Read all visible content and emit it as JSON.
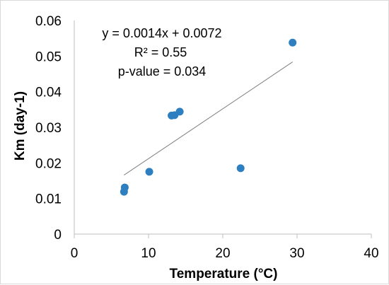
{
  "chart_data": {
    "type": "scatter",
    "title": "",
    "xlabel": "Temperature (°C)",
    "ylabel": "Km (day-1)",
    "xlim": [
      0,
      40
    ],
    "ylim": [
      0,
      0.06
    ],
    "xticks": [
      0,
      10,
      20,
      30,
      40
    ],
    "yticks": [
      0,
      0.01,
      0.02,
      0.03,
      0.04,
      0.05,
      0.06
    ],
    "grid": false,
    "legend": "none",
    "series": [
      {
        "color": "#2e7fc0",
        "x": [
          6.7,
          6.8,
          10.1,
          13.1,
          13.5,
          14.2,
          22.4,
          29.4
        ],
        "y": [
          0.0119,
          0.0131,
          0.0175,
          0.0333,
          0.0334,
          0.0344,
          0.0185,
          0.0538
        ]
      }
    ],
    "trendline": {
      "color": "#808080",
      "x": [
        6.7,
        29.4
      ],
      "y": [
        0.01658,
        0.04836
      ]
    },
    "annotations": [
      "y = 0.0014x + 0.0072",
      "R² = 0.55",
      "p-value = 0.034"
    ]
  }
}
